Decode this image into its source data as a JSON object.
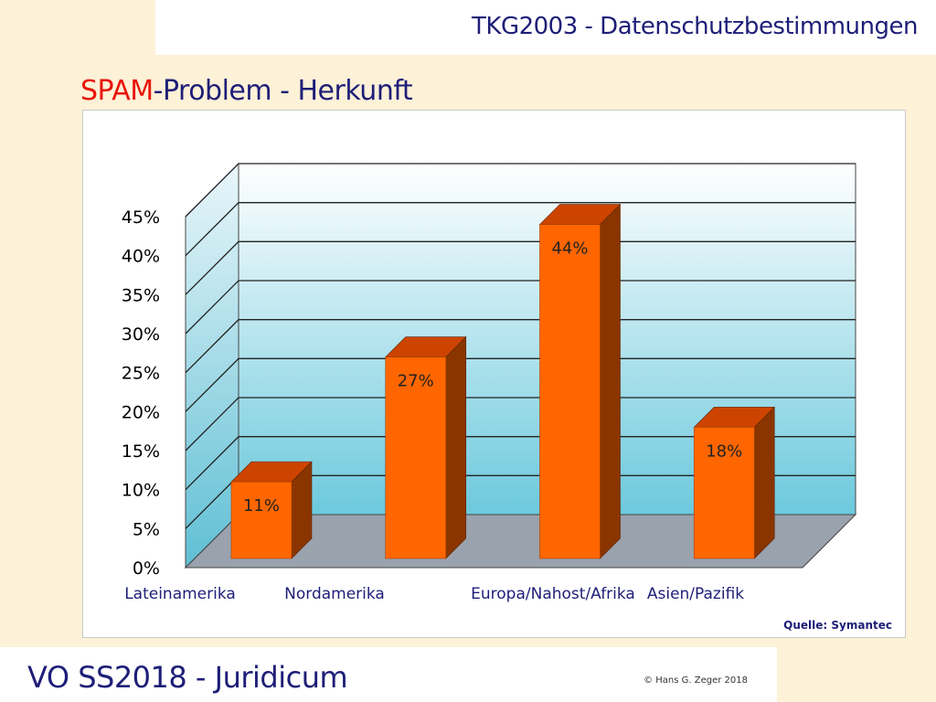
{
  "header": {
    "title": "TKG2003 - Datenschutzbestimmungen"
  },
  "slide": {
    "title_accent": "SPAM",
    "title_rest": "-Problem - Herkunft"
  },
  "chart_data": {
    "type": "bar",
    "categories": [
      "Lateinamerika",
      "Nordamerika",
      "Europa/Nahost/Afrika",
      "Asien/Pazifik"
    ],
    "values": [
      11,
      27,
      44,
      18
    ],
    "data_labels": [
      "11%",
      "27%",
      "44%",
      "18%"
    ],
    "ylim": [
      0,
      45
    ],
    "yticks": [
      "0%",
      "5%",
      "10%",
      "15%",
      "20%",
      "25%",
      "30%",
      "35%",
      "40%",
      "45%"
    ],
    "grid": true,
    "style": "3d",
    "colors": {
      "bar_front": "#ff6600",
      "bar_top": "#cc4400",
      "bar_side": "#8a3500",
      "wall_top": "#ffffff",
      "wall_bottom": "#6cc9dd",
      "floor": "#9aa2ad"
    },
    "source": "Quelle: Symantec"
  },
  "footer": {
    "title": "VO SS2018 - Juridicum",
    "copyright": "© Hans G. Zeger 2018"
  }
}
